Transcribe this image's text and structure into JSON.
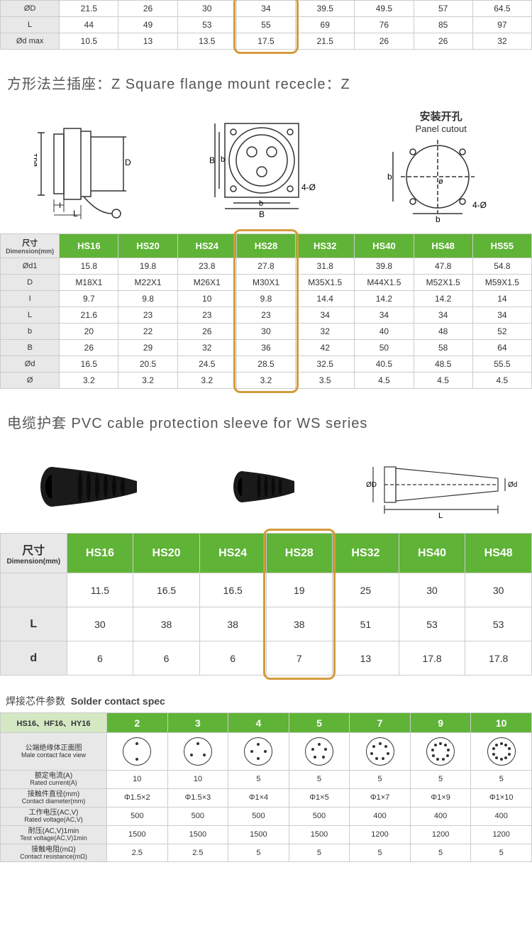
{
  "colors": {
    "green_header": "#5fb336",
    "grey_header": "#e8e8e8",
    "highlight_border": "#d49b3c",
    "text": "#333333",
    "bg": "#ffffff",
    "border": "#cccccc"
  },
  "table1": {
    "row_labels": [
      "ØD",
      "L",
      "Ød max"
    ],
    "rows": [
      [
        "21.5",
        "26",
        "30",
        "34",
        "39.5",
        "49.5",
        "57",
        "64.5"
      ],
      [
        "44",
        "49",
        "53",
        "55",
        "69",
        "76",
        "85",
        "97"
      ],
      [
        "10.5",
        "13",
        "13.5",
        "17.5",
        "21.5",
        "26",
        "26",
        "32"
      ]
    ],
    "highlight_col": 3
  },
  "title2": "方形法兰插座：Z Square flange mount rececle：Z",
  "diag2_labels": {
    "panel_cn": "安装开孔",
    "panel_en": "Panel cutout"
  },
  "table2": {
    "header_cn": "尺寸",
    "header_en": "Dimension(mm)",
    "cols": [
      "HS16",
      "HS20",
      "HS24",
      "HS28",
      "HS32",
      "HS40",
      "HS48",
      "HS55"
    ],
    "row_labels": [
      "Ød1",
      "D",
      "I",
      "L",
      "b",
      "B",
      "Ød",
      "Ø"
    ],
    "rows": [
      [
        "15.8",
        "19.8",
        "23.8",
        "27.8",
        "31.8",
        "39.8",
        "47.8",
        "54.8"
      ],
      [
        "M18X1",
        "M22X1",
        "M26X1",
        "M30X1",
        "M35X1.5",
        "M44X1.5",
        "M52X1.5",
        "M59X1.5"
      ],
      [
        "9.7",
        "9.8",
        "10",
        "9.8",
        "14.4",
        "14.2",
        "14.2",
        "14"
      ],
      [
        "21.6",
        "23",
        "23",
        "23",
        "34",
        "34",
        "34",
        "34"
      ],
      [
        "20",
        "22",
        "26",
        "30",
        "32",
        "40",
        "48",
        "52"
      ],
      [
        "26",
        "29",
        "32",
        "36",
        "42",
        "50",
        "58",
        "64"
      ],
      [
        "16.5",
        "20.5",
        "24.5",
        "28.5",
        "32.5",
        "40.5",
        "48.5",
        "55.5"
      ],
      [
        "3.2",
        "3.2",
        "3.2",
        "3.2",
        "3.5",
        "4.5",
        "4.5",
        "4.5"
      ]
    ],
    "highlight_col": 3
  },
  "title3": "电缆护套 PVC cable protection sleeve for WS series",
  "table3": {
    "header_cn": "尺寸",
    "header_en": "Dimension(mm)",
    "cols": [
      "HS16",
      "HS20",
      "HS24",
      "HS28",
      "HS32",
      "HS40",
      "HS48"
    ],
    "row_labels": [
      "",
      "L",
      "d"
    ],
    "rows": [
      [
        "11.5",
        "16.5",
        "16.5",
        "19",
        "25",
        "30",
        "30"
      ],
      [
        "30",
        "38",
        "38",
        "38",
        "51",
        "53",
        "53"
      ],
      [
        "6",
        "6",
        "6",
        "7",
        "13",
        "17.8",
        "17.8"
      ]
    ],
    "highlight_col": 3
  },
  "title4_cn": "焊接芯件参数",
  "title4_en": "Solder contact spec",
  "table4": {
    "hs_label": "HS16、HF16、HY16",
    "cols": [
      "2",
      "3",
      "4",
      "5",
      "7",
      "9",
      "10"
    ],
    "row_labels": [
      {
        "cn": "公端绝缘体正面图",
        "en": "Male contact face view"
      },
      {
        "cn": "额定电流(A)",
        "en": "Rated current(A)"
      },
      {
        "cn": "接触件直径(mm)",
        "en": "Contact diameter(mm)"
      },
      {
        "cn": "工作电压(AC,V)",
        "en": "Rated voltage(AC,V)"
      },
      {
        "cn": "耐压(AC,V)1min",
        "en": "Test voltage(AC,V)1min"
      },
      {
        "cn": "接触电阻(mΩ)",
        "en": "Contact resistance(mΩ)"
      }
    ],
    "rows": [
      [
        "10",
        "10",
        "5",
        "5",
        "5",
        "5",
        "5"
      ],
      [
        "Φ1.5×2",
        "Φ1.5×3",
        "Φ1×4",
        "Φ1×5",
        "Φ1×7",
        "Φ1×9",
        "Φ1×10"
      ],
      [
        "500",
        "500",
        "500",
        "500",
        "400",
        "400",
        "400"
      ],
      [
        "1500",
        "1500",
        "1500",
        "1500",
        "1200",
        "1200",
        "1200"
      ],
      [
        "2.5",
        "2.5",
        "5",
        "5",
        "5",
        "5",
        "5"
      ]
    ],
    "pin_counts": [
      2,
      3,
      4,
      5,
      7,
      9,
      10
    ]
  },
  "diag_text": {
    "four_phi": "4-Ø"
  },
  "sleeve_dims": {
    "D": "ØD",
    "d": "Ød",
    "L": "L"
  }
}
